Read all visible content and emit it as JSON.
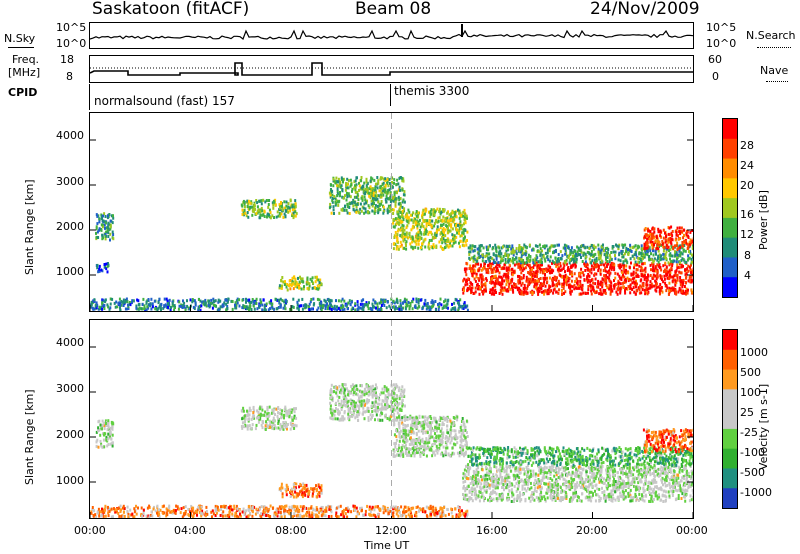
{
  "header": {
    "station": "Saskatoon (fitACF)",
    "beam": "Beam 08",
    "date": "24/Nov/2009"
  },
  "noise_panel": {
    "left_label": "N.Sky",
    "right_label": "N.Search",
    "ticks_left": [
      "10^5",
      "10^0"
    ],
    "ticks_right": [
      "10^5",
      "10^0"
    ]
  },
  "freq_panel": {
    "left_label_1": "Freq.",
    "left_label_2": "[MHz]",
    "right_label": "Nave",
    "ticks_left": [
      "18",
      "8"
    ],
    "ticks_right": [
      "60",
      "0"
    ]
  },
  "cpid": {
    "label": "CPID",
    "program_1": "normalsound (fast) 157",
    "program_2": "themis 3300",
    "switch_hour": 12
  },
  "time_axis": {
    "label": "Time UT",
    "ticks": [
      "00:00",
      "04:00",
      "08:00",
      "12:00",
      "16:00",
      "20:00",
      "00:00"
    ]
  },
  "chart_data": [
    {
      "type": "heatmap",
      "name": "power-panel",
      "ylabel": "Slant Range [km]",
      "xlim": [
        0,
        24
      ],
      "ylim": [
        200,
        4600
      ],
      "yticks": [
        "4000",
        "3000",
        "2000",
        "1000"
      ],
      "colorbar_label": "Power [dB]",
      "colorbar_ticks": [
        "28",
        "24",
        "20",
        "16",
        "12",
        "8",
        "4"
      ],
      "colorbar_colors": [
        "#0000ff",
        "#2060c8",
        "#208c78",
        "#40b040",
        "#a0c820",
        "#ffc800",
        "#ff8c00",
        "#ff4000",
        "#ff0000"
      ],
      "regions": [
        {
          "t0": 0.0,
          "t1": 15.0,
          "r0": 250,
          "r1": 500,
          "level": 0.25
        },
        {
          "t0": 0.2,
          "t1": 0.9,
          "r0": 1800,
          "r1": 2400,
          "level": 0.3
        },
        {
          "t0": 0.2,
          "t1": 0.7,
          "r0": 1100,
          "r1": 1300,
          "level": 0.2
        },
        {
          "t0": 6.0,
          "t1": 8.2,
          "r0": 2300,
          "r1": 2700,
          "level": 0.45
        },
        {
          "t0": 7.5,
          "t1": 9.2,
          "r0": 700,
          "r1": 1000,
          "level": 0.5
        },
        {
          "t0": 9.5,
          "t1": 12.5,
          "r0": 2400,
          "r1": 3200,
          "level": 0.4
        },
        {
          "t0": 12.0,
          "t1": 15.0,
          "r0": 1600,
          "r1": 2500,
          "level": 0.5
        },
        {
          "t0": 14.8,
          "t1": 24.0,
          "r0": 600,
          "r1": 1300,
          "level": 0.92
        },
        {
          "t0": 15.0,
          "t1": 24.0,
          "r0": 1300,
          "r1": 1700,
          "level": 0.35
        },
        {
          "t0": 22.0,
          "t1": 24.0,
          "r0": 1600,
          "r1": 2100,
          "level": 0.88
        }
      ]
    },
    {
      "type": "heatmap",
      "name": "velocity-panel",
      "ylabel": "Slant Range [km]",
      "xlim": [
        0,
        24
      ],
      "ylim": [
        200,
        4600
      ],
      "yticks": [
        "4000",
        "3000",
        "2000",
        "1000"
      ],
      "colorbar_label": "Velocity [m s-1]",
      "colorbar_ticks": [
        "1000",
        "500",
        "100",
        "25",
        "-25",
        "-100",
        "-500",
        "-1000"
      ],
      "colorbar_colors": [
        "#2040c0",
        "#209080",
        "#30b030",
        "#60d040",
        "#c8c8c8",
        "#c8c8c8",
        "#ff9a20",
        "#ff6000",
        "#ff0000"
      ],
      "regions": [
        {
          "t0": 0.0,
          "t1": 15.0,
          "r0": 250,
          "r1": 500,
          "level": 0.75
        },
        {
          "t0": 0.2,
          "t1": 0.9,
          "r0": 1800,
          "r1": 2400,
          "level": 0.5
        },
        {
          "t0": 6.0,
          "t1": 8.2,
          "r0": 2200,
          "r1": 2700,
          "level": 0.5
        },
        {
          "t0": 7.5,
          "t1": 9.2,
          "r0": 700,
          "r1": 1000,
          "level": 0.8
        },
        {
          "t0": 9.5,
          "t1": 12.5,
          "r0": 2400,
          "r1": 3200,
          "level": 0.5
        },
        {
          "t0": 12.0,
          "t1": 15.0,
          "r0": 1600,
          "r1": 2500,
          "level": 0.5
        },
        {
          "t0": 14.8,
          "t1": 24.0,
          "r0": 600,
          "r1": 1400,
          "level": 0.5
        },
        {
          "t0": 15.0,
          "t1": 24.0,
          "r0": 1400,
          "r1": 1800,
          "level": 0.3
        },
        {
          "t0": 22.0,
          "t1": 24.0,
          "r0": 1700,
          "r1": 2200,
          "level": 0.82
        }
      ]
    }
  ]
}
